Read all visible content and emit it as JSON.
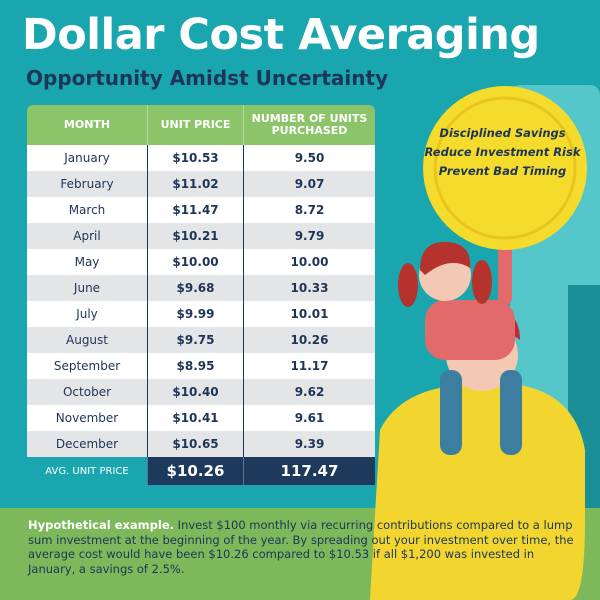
{
  "header": {
    "title": "Dollar Cost Averaging",
    "subtitle": "Opportunity Amidst Uncertainty"
  },
  "table": {
    "columns": [
      "MONTH",
      "UNIT PRICE",
      "NUMBER OF UNITS PURCHASED"
    ],
    "rows": [
      [
        "January",
        "$10.53",
        "9.50"
      ],
      [
        "February",
        "$11.02",
        "9.07"
      ],
      [
        "March",
        "$11.47",
        "8.72"
      ],
      [
        "April",
        "$10.21",
        "9.79"
      ],
      [
        "May",
        "$10.00",
        "10.00"
      ],
      [
        "June",
        "$9.68",
        "10.33"
      ],
      [
        "July",
        "$9.99",
        "10.01"
      ],
      [
        "August",
        "$9.75",
        "10.26"
      ],
      [
        "September",
        "$8.95",
        "11.17"
      ],
      [
        "October",
        "$10.40",
        "9.62"
      ],
      [
        "November",
        "$10.41",
        "9.61"
      ],
      [
        "December",
        "$10.65",
        "9.39"
      ]
    ],
    "footer": [
      "AVG. UNIT PRICE",
      "$10.26",
      "117.47"
    ]
  },
  "coin": {
    "lines": [
      "Disciplined Savings",
      "Reduce Investment Risk",
      "Prevent Bad Timing"
    ]
  },
  "footnote": {
    "lead": "Hypothetical example.",
    "text": "Invest $100 monthly via recurring contributions compared to a lump sum investment at the beginning of the year. By spreading out your investment over time, the average cost would have been $10.26 compared to $10.53 if all $1,200 was invested in January, a savings of 2.5%."
  }
}
